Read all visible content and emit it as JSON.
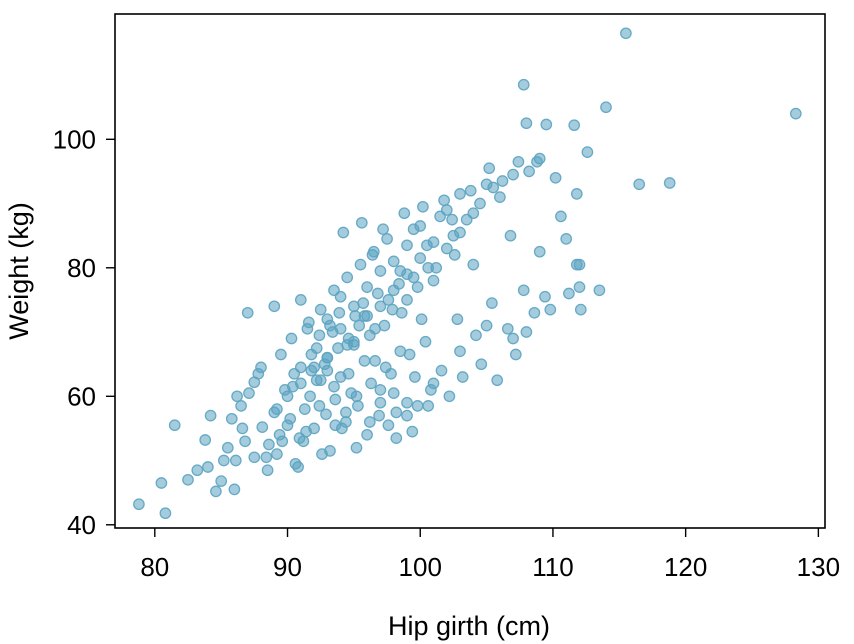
{
  "chart_data": {
    "type": "scatter",
    "title": "",
    "xlabel": "Hip girth (cm)",
    "ylabel": "Weight (kg)",
    "xlim": [
      77,
      130.5
    ],
    "ylim": [
      39.5,
      119.5
    ],
    "xticks": [
      80,
      90,
      100,
      110,
      120,
      130
    ],
    "yticks": [
      40,
      60,
      80,
      100
    ],
    "grid": false,
    "legend": "none",
    "point_color": "#5ba3c1",
    "series": [
      {
        "x": [
          78.8,
          80.8,
          80.5,
          81.5,
          82.5,
          83.2,
          83.8,
          84.2,
          84.6,
          85.0,
          85.5,
          85.8,
          86.1,
          86.5,
          86.8,
          87.1,
          87.5,
          88.0,
          84.0,
          86.0,
          87.5,
          88.1,
          88.6,
          89.0,
          89.4,
          89.8,
          90.2,
          90.5,
          90.9,
          91.3,
          91.7,
          92.0,
          92.5,
          92.9,
          93.2,
          93.6,
          94.0,
          94.4,
          94.8,
          95.3,
          88.5,
          89.2,
          90.0,
          90.6,
          91.2,
          91.8,
          92.4,
          93.0,
          93.5,
          94.1,
          94.6,
          95.2,
          95.8,
          96.3,
          96.9,
          97.4,
          98.0,
          98.5,
          99.0,
          99.6,
          89.5,
          90.3,
          91.0,
          91.6,
          92.2,
          92.8,
          93.4,
          93.9,
          94.5,
          95.1,
          95.7,
          96.2,
          96.8,
          97.3,
          97.9,
          98.4,
          99.0,
          99.5,
          100.1,
          100.6,
          90.0,
          91.0,
          92.0,
          93.0,
          94.0,
          95.0,
          96.0,
          97.0,
          98.0,
          99.0,
          100.0,
          101.0,
          102.0,
          103.0,
          104.0,
          91.5,
          92.5,
          93.5,
          94.5,
          95.5,
          96.5,
          97.5,
          98.5,
          99.5,
          100.5,
          101.5,
          102.5,
          103.5,
          104.5,
          105.5,
          93.0,
          94.0,
          95.0,
          96.0,
          97.0,
          98.0,
          99.0,
          100.0,
          101.0,
          102.0,
          103.0,
          104.0,
          105.0,
          106.0,
          107.0,
          92.2,
          93.8,
          95.4,
          96.6,
          97.8,
          99.2,
          100.4,
          101.6,
          102.8,
          104.2,
          105.4,
          106.6,
          107.8,
          108.6,
          109.4,
          87.0,
          89.0,
          91.0,
          93.0,
          95.0,
          97.0,
          99.0,
          101.0,
          103.0,
          105.0,
          107.0,
          109.0,
          111.0,
          112.0,
          112.1,
          94.2,
          95.6,
          96.4,
          97.2,
          98.8,
          100.2,
          101.8,
          102.4,
          103.8,
          105.2,
          106.2,
          107.4,
          108.2,
          110.6,
          111.8,
          96.0,
          97.6,
          98.2,
          99.8,
          100.8,
          102.2,
          103.2,
          104.6,
          105.8,
          107.2,
          108.0,
          109.8,
          111.2,
          112.0,
          113.5,
          85.2,
          86.6,
          88.4,
          89.6,
          90.8,
          91.4,
          92.6,
          93.6,
          94.4,
          95.2,
          96.2,
          97.0,
          98.2,
          99.4,
          100.6,
          86.2,
          87.8,
          89.2,
          90.4,
          91.8,
          92.4,
          93.2,
          94.6,
          95.8,
          96.6,
          97.6,
          98.6,
          99.8,
          101.2,
          102.6,
          107.8,
          108.0,
          109.5,
          110.2,
          111.6,
          112.6,
          114.0,
          115.5,
          116.5,
          118.8,
          128.3,
          111.8,
          109.0,
          108.8,
          106.8
        ],
        "y": [
          43.2,
          41.8,
          46.5,
          55.5,
          47.0,
          48.5,
          53.2,
          57.0,
          45.2,
          46.8,
          52.0,
          56.5,
          50.0,
          58.5,
          53.0,
          60.5,
          62.2,
          64.5,
          49.0,
          45.5,
          50.5,
          55.2,
          52.5,
          57.5,
          54.0,
          61.0,
          56.5,
          63.5,
          53.5,
          58.0,
          60.0,
          55.0,
          62.5,
          57.2,
          51.5,
          59.5,
          63.0,
          56.0,
          60.5,
          58.5,
          48.5,
          51.0,
          55.5,
          49.5,
          53.0,
          64.0,
          58.5,
          66.0,
          61.5,
          55.0,
          63.5,
          60.0,
          65.5,
          62.0,
          57.0,
          64.5,
          60.5,
          67.0,
          59.0,
          63.0,
          66.5,
          69.0,
          64.5,
          71.5,
          67.5,
          65.0,
          70.0,
          73.0,
          68.0,
          72.5,
          74.5,
          69.5,
          76.0,
          71.0,
          73.5,
          77.5,
          75.0,
          78.5,
          72.0,
          80.0,
          60.0,
          62.0,
          64.5,
          66.0,
          70.5,
          68.5,
          72.5,
          74.0,
          76.5,
          79.0,
          81.5,
          78.0,
          83.0,
          85.5,
          80.5,
          70.5,
          73.5,
          76.5,
          78.5,
          80.5,
          82.5,
          84.5,
          79.5,
          86.0,
          83.5,
          88.0,
          85.0,
          87.5,
          90.0,
          92.5,
          72.0,
          75.5,
          74.0,
          77.0,
          79.5,
          81.0,
          83.5,
          86.5,
          84.0,
          89.0,
          91.5,
          88.5,
          93.0,
          91.0,
          94.5,
          62.5,
          67.5,
          71.0,
          65.5,
          63.5,
          66.5,
          68.5,
          64.0,
          72.0,
          69.5,
          74.5,
          70.5,
          76.5,
          73.0,
          75.5,
          73.0,
          74.0,
          75.0,
          64.0,
          68.0,
          61.0,
          57.0,
          62.0,
          67.0,
          71.0,
          69.0,
          82.5,
          84.5,
          77.0,
          73.5,
          85.5,
          87.0,
          82.0,
          86.0,
          88.5,
          89.5,
          90.5,
          87.5,
          92.0,
          95.5,
          93.5,
          96.5,
          95.0,
          88.0,
          91.5,
          54.0,
          55.5,
          53.5,
          58.5,
          61.0,
          60.0,
          63.0,
          65.0,
          62.5,
          66.5,
          70.0,
          73.5,
          76.0,
          80.5,
          76.5,
          50.0,
          55.0,
          50.5,
          53.0,
          49.0,
          54.5,
          51.0,
          55.5,
          57.5,
          52.0,
          56.0,
          59.0,
          57.5,
          54.5,
          58.5,
          60.0,
          63.5,
          58.0,
          61.5,
          66.5,
          69.5,
          71.0,
          69.0,
          72.5,
          70.5,
          75.0,
          73.0,
          77.0,
          80.0,
          82.0,
          108.5,
          102.5,
          102.3,
          94.0,
          102.2,
          98.0,
          105.0,
          116.5,
          93.0,
          93.2,
          104.0,
          80.5,
          97.0,
          96.5,
          85.0
        ]
      }
    ]
  }
}
